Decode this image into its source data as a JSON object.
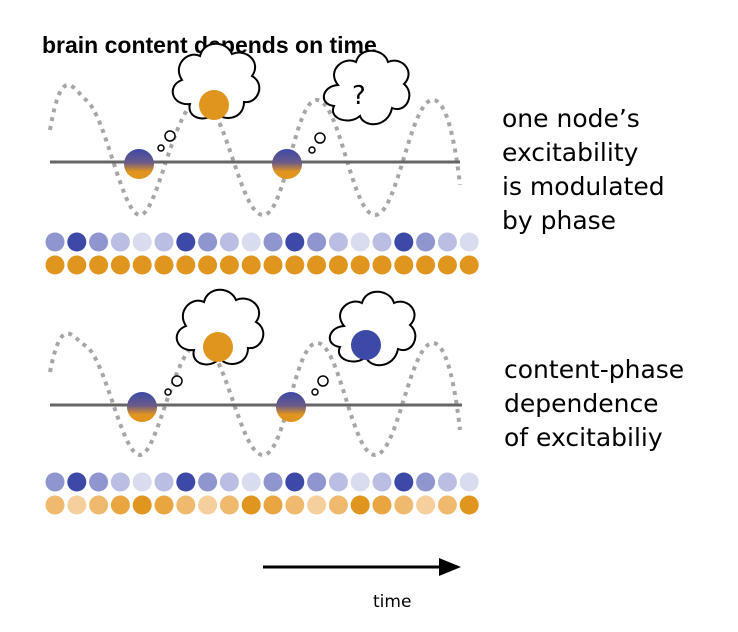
{
  "title": "brain content depends on time",
  "panel1": {
    "caption": [
      "one node’s",
      "excitability",
      "is modulated",
      "by phase"
    ],
    "thought_question": "?",
    "blue_levels": [
      2,
      4,
      2,
      1,
      0,
      1,
      4,
      2,
      1,
      0,
      2,
      4,
      2,
      1,
      0,
      1,
      4,
      2,
      1,
      0
    ],
    "orange_levels": [
      4,
      4,
      4,
      4,
      4,
      4,
      4,
      4,
      4,
      4,
      4,
      4,
      4,
      4,
      4,
      4,
      4,
      4,
      4,
      4
    ]
  },
  "panel2": {
    "caption": [
      "content-phase",
      "dependence",
      "of excitabiliy"
    ],
    "blue_levels": [
      2,
      4,
      2,
      1,
      0,
      1,
      4,
      2,
      1,
      0,
      2,
      4,
      2,
      1,
      0,
      1,
      4,
      2,
      1,
      0
    ],
    "orange_levels": [
      2,
      1,
      2,
      3,
      4,
      3,
      2,
      1,
      2,
      4,
      3,
      2,
      1,
      2,
      4,
      3,
      2,
      1,
      2,
      4
    ]
  },
  "time_label": "time",
  "colors": {
    "blue_scale": [
      "#d9dcef",
      "#b9bee2",
      "#8f96cf",
      "#6a72be",
      "#3d49a6"
    ],
    "orange_scale": [
      "#fbe6cc",
      "#f5d09c",
      "#efba6e",
      "#e9a640",
      "#e0951f"
    ],
    "wave": "#a6a6a6",
    "baseline": "#666666"
  }
}
